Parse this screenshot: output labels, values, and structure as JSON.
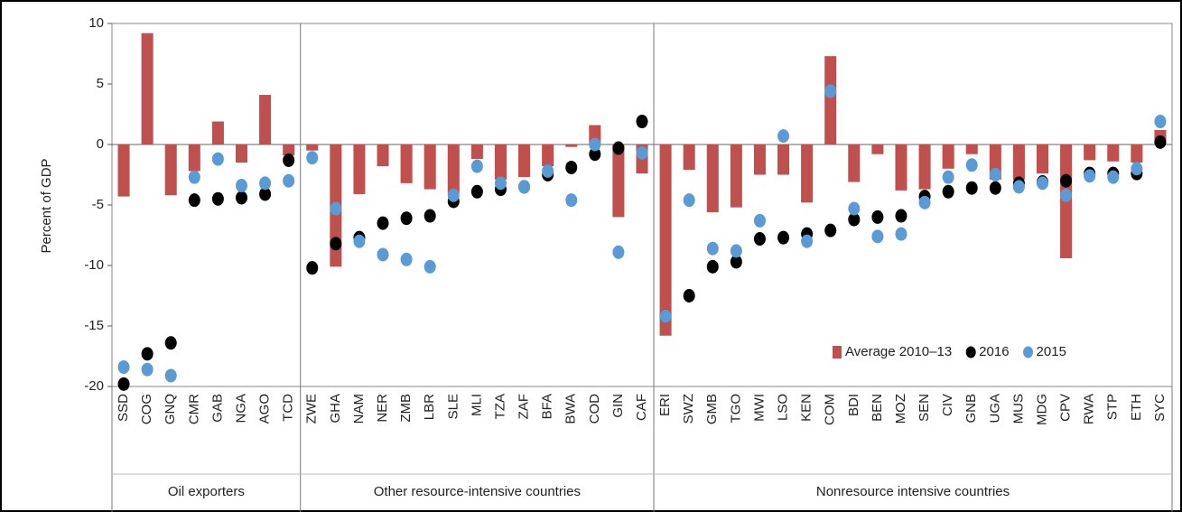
{
  "chart_data": {
    "type": "bar_dot",
    "y_label": "Percent of GDP",
    "groups": [
      {
        "name": "Oil exporters",
        "categories": [
          "SSD",
          "COG",
          "GNQ",
          "CMR",
          "GAB",
          "NGA",
          "AGO",
          "TCD"
        ]
      },
      {
        "name": "Other resource-intensive countries",
        "categories": [
          "ZWE",
          "GHA",
          "NAM",
          "NER",
          "ZMB",
          "LBR",
          "SLE",
          "MLI",
          "TZA",
          "ZAF",
          "BFA",
          "BWA",
          "COD",
          "GIN",
          "CAF"
        ]
      },
      {
        "name": "Nonresource intensive countries",
        "categories": [
          "ERI",
          "SWZ",
          "GMB",
          "TGO",
          "MWI",
          "LSO",
          "KEN",
          "COM",
          "BDI",
          "BEN",
          "MOZ",
          "SEN",
          "CIV",
          "GNB",
          "UGA",
          "MUS",
          "MDG",
          "CPV",
          "RWA",
          "STP",
          "ETH",
          "SYC"
        ]
      }
    ],
    "series": [
      {
        "name": "Average 2010–13",
        "kind": "bar",
        "color": "#c0504d",
        "values": [
          -4.3,
          9.2,
          -4.2,
          -2.2,
          1.9,
          -1.5,
          4.1,
          -0.9,
          -0.5,
          -10.1,
          -4.1,
          -1.8,
          -3.2,
          -3.7,
          -4.0,
          -1.2,
          -2.9,
          -2.7,
          -1.8,
          -0.2,
          1.6,
          -6.0,
          -2.4,
          -15.8,
          -2.1,
          -5.6,
          -5.2,
          -2.5,
          -2.5,
          -4.8,
          7.3,
          -3.1,
          -0.8,
          -3.8,
          -3.7,
          -2.0,
          -0.8,
          -2.9,
          -2.9,
          -2.4,
          -9.4,
          -1.3,
          -1.4,
          -1.5,
          1.2
        ]
      },
      {
        "name": "2016",
        "kind": "dot",
        "color": "#000000",
        "values": [
          -19.8,
          -17.3,
          -16.4,
          -4.6,
          -4.5,
          -4.4,
          -4.1,
          -1.3,
          -10.2,
          -8.2,
          -7.7,
          -6.5,
          -6.1,
          -5.9,
          -4.7,
          -3.9,
          -3.7,
          -3.5,
          -2.5,
          -1.9,
          -0.8,
          -0.3,
          1.9,
          -14.2,
          -12.5,
          -10.1,
          -9.7,
          -7.8,
          -7.7,
          -7.4,
          -7.1,
          -6.2,
          -6.0,
          -5.9,
          -4.3,
          -3.9,
          -3.6,
          -3.6,
          -3.2,
          -3.1,
          -3.0,
          -2.4,
          -2.4,
          -2.4,
          0.2
        ]
      },
      {
        "name": "2015",
        "kind": "dot",
        "color": "#5b9bd5",
        "values": [
          -18.4,
          -18.6,
          -19.1,
          -2.7,
          -1.2,
          -3.4,
          -3.2,
          -3.0,
          -1.1,
          -5.3,
          -8.0,
          -9.1,
          -9.5,
          -10.1,
          -4.2,
          -1.8,
          -3.2,
          -3.5,
          -2.2,
          -4.6,
          0.0,
          -8.9,
          -0.7,
          -14.2,
          -4.6,
          -8.6,
          -8.8,
          -6.3,
          0.7,
          -8.0,
          4.4,
          -5.3,
          -7.6,
          -7.4,
          -4.8,
          -2.7,
          -1.7,
          -2.5,
          -3.5,
          -3.2,
          -4.2,
          -2.6,
          -2.7,
          -2.0,
          1.9
        ]
      }
    ],
    "ylim": [
      -20,
      10
    ],
    "yticks": [
      -20,
      -15,
      -10,
      -5,
      0,
      5,
      10
    ],
    "legend": "lower right"
  }
}
